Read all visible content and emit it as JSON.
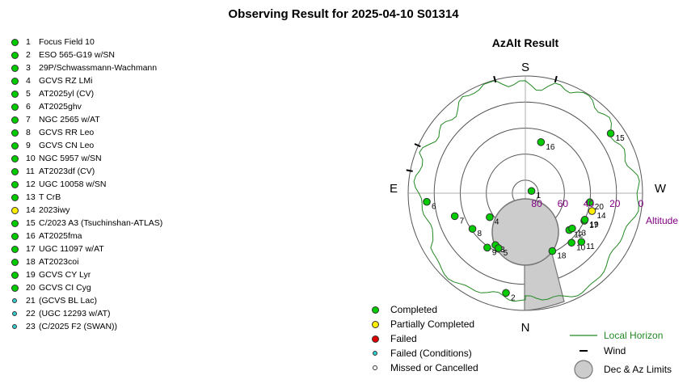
{
  "page_title": "Observing Result for 2025-04-10 S01314",
  "colors": {
    "completed": "#00cc00",
    "partially_completed": "#ffee00",
    "failed": "#dd0000",
    "failed_conditions": "#33cccc",
    "missed": "#ffffff",
    "horizon": "#228822",
    "limits_fill": "#cccccc",
    "altitude_label": "#800080"
  },
  "targets": [
    {
      "num": "1",
      "name": "Focus Field 10",
      "status": "completed"
    },
    {
      "num": "2",
      "name": "ESO 565-G19 w/SN",
      "status": "completed"
    },
    {
      "num": "3",
      "name": "29P/Schwassmann-Wachmann",
      "status": "completed"
    },
    {
      "num": "4",
      "name": "GCVS RZ LMi",
      "status": "completed"
    },
    {
      "num": "5",
      "name": "AT2025yl (CV)",
      "status": "completed"
    },
    {
      "num": "6",
      "name": "AT2025ghv",
      "status": "completed"
    },
    {
      "num": "7",
      "name": "NGC 2565 w/AT",
      "status": "completed"
    },
    {
      "num": "8",
      "name": "GCVS RR Leo",
      "status": "completed"
    },
    {
      "num": "9",
      "name": "GCVS CN Leo",
      "status": "completed"
    },
    {
      "num": "10",
      "name": "NGC 5957 w/SN",
      "status": "completed"
    },
    {
      "num": "11",
      "name": "AT2023df (CV)",
      "status": "completed"
    },
    {
      "num": "12",
      "name": "UGC 10058 w/SN",
      "status": "completed"
    },
    {
      "num": "13",
      "name": "T CrB",
      "status": "completed"
    },
    {
      "num": "14",
      "name": "2023iwy",
      "status": "partially_completed"
    },
    {
      "num": "15",
      "name": "C/2023 A3 (Tsuchinshan-ATLAS)",
      "status": "completed"
    },
    {
      "num": "16",
      "name": "AT2025fma",
      "status": "completed"
    },
    {
      "num": "17",
      "name": "UGC 11097 w/AT",
      "status": "completed"
    },
    {
      "num": "18",
      "name": "AT2023coi",
      "status": "completed"
    },
    {
      "num": "19",
      "name": "GCVS CY Lyr",
      "status": "completed"
    },
    {
      "num": "20",
      "name": "GCVS CI Cyg",
      "status": "completed"
    },
    {
      "num": "21",
      "name": "(GCVS BL Lac)",
      "status": "failed_conditions"
    },
    {
      "num": "22",
      "name": "(UGC 12293 w/AT)",
      "status": "failed_conditions"
    },
    {
      "num": "23",
      "name": "(C/2025 F2 (SWAN))",
      "status": "failed_conditions"
    }
  ],
  "chart_data": {
    "type": "scatter",
    "projection": "polar azimuth-altitude",
    "title": "AzAlt Result",
    "directions": {
      "top": "S",
      "bottom": "N",
      "left": "E",
      "right": "W"
    },
    "radial_axis_label": "Altitude",
    "radial_ticks": [
      "80",
      "60",
      "40",
      "20",
      "0"
    ],
    "radial_tick_values": [
      80,
      60,
      40,
      20,
      0
    ],
    "altitude_range": [
      0,
      90
    ],
    "points": [
      {
        "label": "1",
        "az": 250,
        "alt": 85,
        "status": "completed"
      },
      {
        "label": "2",
        "az": 11,
        "alt": 12,
        "status": "completed"
      },
      {
        "label": "3",
        "az": 30,
        "alt": 44,
        "status": "completed"
      },
      {
        "label": "4",
        "az": 56,
        "alt": 57,
        "status": "completed"
      },
      {
        "label": "5",
        "az": 26,
        "alt": 43,
        "status": "completed"
      },
      {
        "label": "6",
        "az": 85,
        "alt": 14,
        "status": "completed"
      },
      {
        "label": "7",
        "az": 72,
        "alt": 33,
        "status": "completed"
      },
      {
        "label": "8",
        "az": 56,
        "alt": 41,
        "status": "completed"
      },
      {
        "label": "9",
        "az": 35,
        "alt": 39,
        "status": "completed"
      },
      {
        "label": "10",
        "az": 317,
        "alt": 38,
        "status": "completed"
      },
      {
        "label": "11",
        "az": 311,
        "alt": 33,
        "status": "completed"
      },
      {
        "label": "12",
        "az": 310,
        "alt": 46,
        "status": "completed"
      },
      {
        "label": "13",
        "az": 307,
        "alt": 45,
        "status": "completed"
      },
      {
        "label": "14",
        "az": 285,
        "alt": 37,
        "status": "partially_completed"
      },
      {
        "label": "15",
        "az": 235,
        "alt": 10,
        "status": "completed"
      },
      {
        "label": "16",
        "az": 197,
        "alt": 49,
        "status": "completed"
      },
      {
        "label": "17",
        "az": 295,
        "alt": 40,
        "status": "completed"
      },
      {
        "label": "18",
        "az": 335,
        "alt": 41,
        "status": "completed"
      },
      {
        "label": "19",
        "az": 294,
        "alt": 40,
        "status": "completed"
      },
      {
        "label": "20",
        "az": 278,
        "alt": 40,
        "status": "completed"
      }
    ],
    "local_horizon": "irregular line near 5-10 degrees altitude",
    "limit_region": "Dec & Az limits: circular zone near zenith plus wedge toward N",
    "wind_ticks": "short marks at rim near S and W-NW"
  },
  "legend": {
    "completed": "Completed",
    "partially_completed": "Partially Completed",
    "failed": "Failed",
    "failed_conditions": "Failed (Conditions)",
    "missed": "Missed or Cancelled",
    "horizon": "Local Horizon",
    "wind": "Wind",
    "limits": "Dec & Az Limits"
  }
}
